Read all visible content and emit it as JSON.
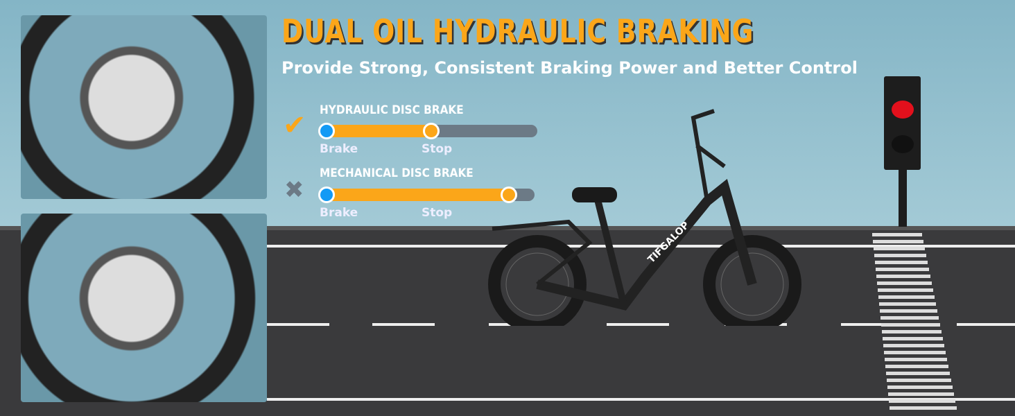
{
  "heading": {
    "title": "DUAL OIL HYDRAULIC BRAKING",
    "subtitle": "Provide Strong, Consistent Braking Power and Better Control"
  },
  "comparison": [
    {
      "label": "HYDRAULIC DISC BRAKE",
      "status_icon": "check-icon",
      "status_color": "#fba619",
      "start_label": "Brake",
      "end_label": "Stop",
      "stop_fraction": 0.51
    },
    {
      "label": "MECHANICAL DISC BRAKE",
      "status_icon": "x-icon",
      "status_color": "#6c7a86",
      "start_label": "Brake",
      "end_label": "Stop",
      "stop_fraction": 0.88
    }
  ],
  "colors": {
    "accent": "#fba619",
    "brake_dot": "#139af5",
    "track": "#6c7a86"
  },
  "brand": "TIFGALOP"
}
